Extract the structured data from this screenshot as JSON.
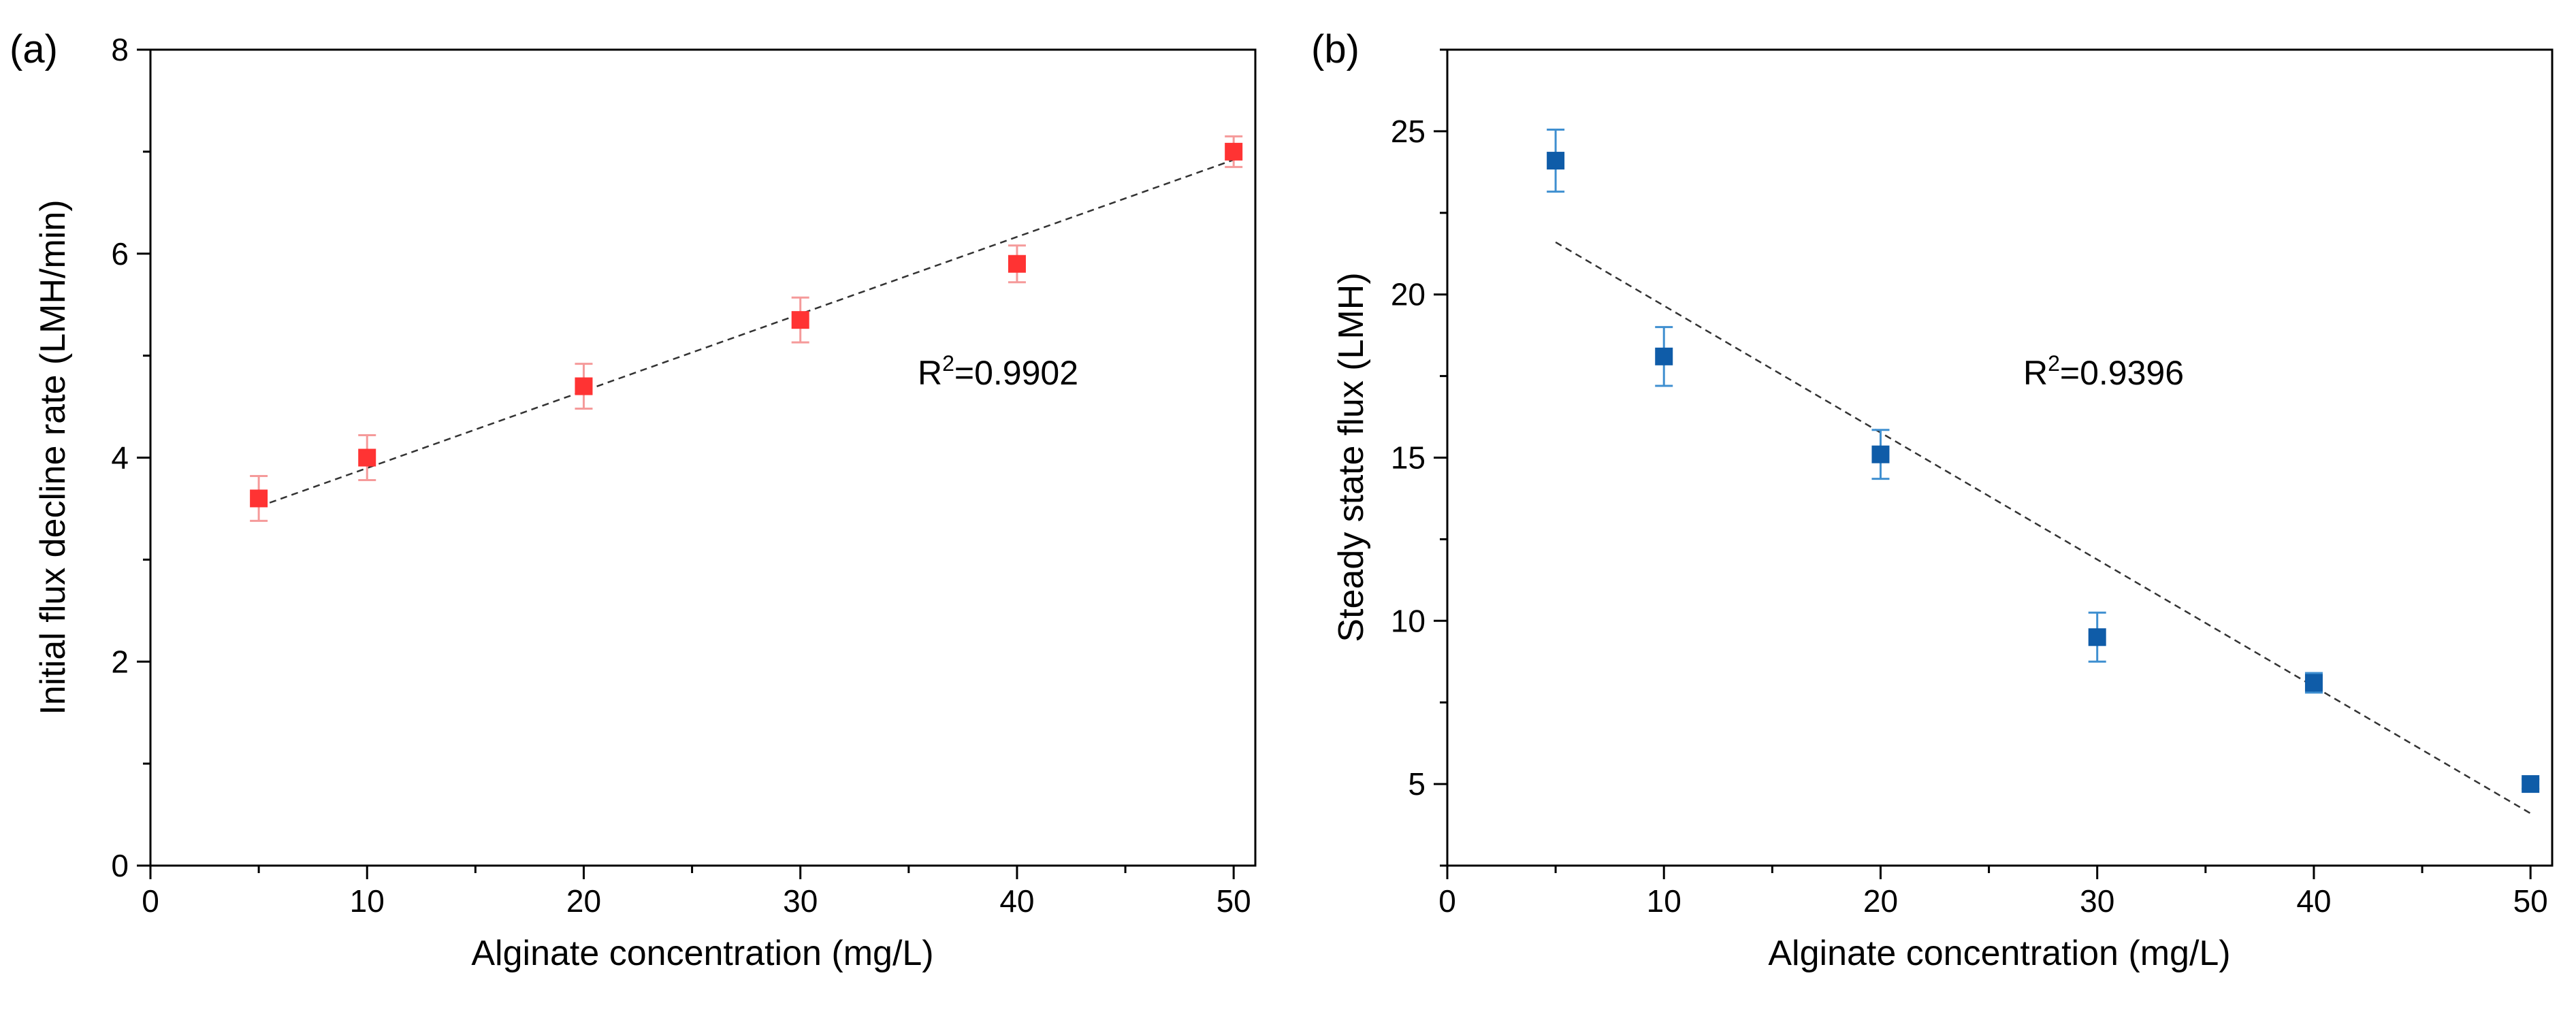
{
  "chart_data": [
    {
      "panel": "(a)",
      "type": "scatter",
      "xlabel": "Alginate concentration (mg/L)",
      "ylabel": "Initial flux decline rate (LMH/min)",
      "xlim": [
        0,
        51
      ],
      "ylim": [
        0,
        8
      ],
      "xticks": [
        0,
        10,
        20,
        30,
        40,
        50
      ],
      "yticks": [
        0,
        2,
        4,
        6,
        8
      ],
      "grid": false,
      "marker_color": "#ff3333",
      "errbar_color": "#f59a9a",
      "x": [
        5,
        10,
        20,
        30,
        40,
        50
      ],
      "y": [
        3.6,
        4.0,
        4.7,
        5.35,
        5.9,
        7.0
      ],
      "err": [
        0.22,
        0.22,
        0.22,
        0.22,
        0.18,
        0.15
      ],
      "fit": {
        "x": [
          5,
          50
        ],
        "y": [
          3.52,
          6.92
        ]
      },
      "annotation": {
        "base": "R",
        "sup": "2",
        "rest": "=0.9902"
      }
    },
    {
      "panel": "(b)",
      "type": "scatter",
      "xlabel": "Alginate concentration (mg/L)",
      "ylabel": "Steady state flux (LMH)",
      "xlim": [
        0,
        51
      ],
      "ylim": [
        2.5,
        27.5
      ],
      "xticks": [
        0,
        10,
        20,
        30,
        40,
        50
      ],
      "yticks": [
        5,
        10,
        15,
        20,
        25
      ],
      "grid": false,
      "marker_color": "#0f5ca8",
      "errbar_color": "#3f8fd0",
      "x": [
        5,
        10,
        20,
        30,
        40,
        50
      ],
      "y": [
        24.1,
        18.1,
        15.1,
        9.5,
        8.1,
        5.0
      ],
      "err": [
        0.95,
        0.9,
        0.75,
        0.75,
        0.3,
        0.15
      ],
      "fit": {
        "x": [
          5,
          50
        ],
        "y": [
          21.6,
          4.1
        ]
      },
      "annotation": {
        "base": "R",
        "sup": "2",
        "rest": "=0.9396"
      }
    }
  ]
}
